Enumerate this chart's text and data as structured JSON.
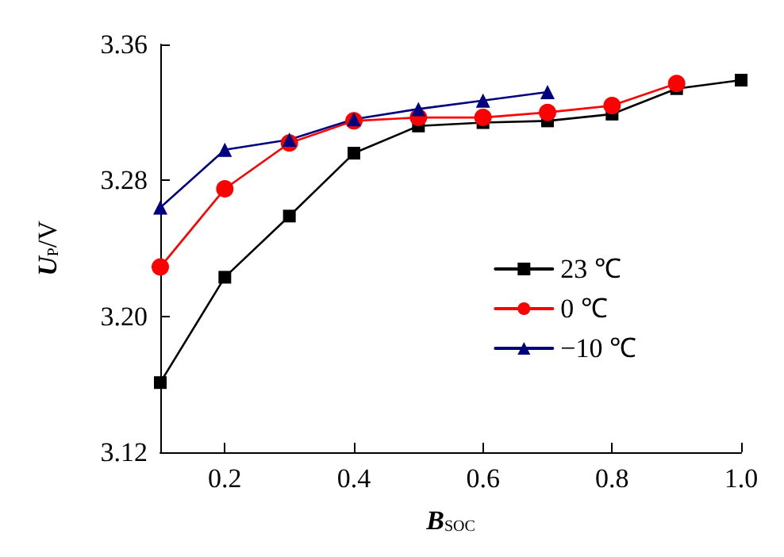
{
  "chart_data": {
    "type": "line",
    "xlabel": "B$_{SOC}$",
    "ylabel": "U$_{P}$/V",
    "x": [
      0.1,
      0.2,
      0.3,
      0.4,
      0.5,
      0.6,
      0.7,
      0.8,
      0.9,
      1.0
    ],
    "series": [
      {
        "name": "23 ℃",
        "color": "#000000",
        "marker": "square",
        "values": [
          3.161,
          3.223,
          3.259,
          3.296,
          3.312,
          3.314,
          3.315,
          3.319,
          3.334,
          3.339
        ]
      },
      {
        "name": "0 ℃",
        "color": "#ff0000",
        "marker": "circle",
        "values": [
          3.229,
          3.275,
          3.302,
          3.315,
          3.317,
          3.317,
          3.32,
          3.324,
          3.337,
          null
        ]
      },
      {
        "name": "−10 ℃",
        "color": "#000080",
        "marker": "triangle",
        "values": [
          3.264,
          3.298,
          3.304,
          3.316,
          3.322,
          3.327,
          3.332,
          null,
          null,
          null
        ]
      }
    ],
    "xlim": [
      0.1,
      1.0
    ],
    "xticks": [
      0.2,
      0.4,
      0.6,
      0.8,
      {
        "value": 1.0,
        "label": "1.0"
      }
    ],
    "ylim": [
      3.12,
      3.36
    ],
    "yticks": [
      3.12,
      {
        "value": 3.2,
        "label": "3.20"
      },
      3.28,
      3.36
    ],
    "grid": false,
    "legend": "right",
    "line_style": "solid"
  }
}
